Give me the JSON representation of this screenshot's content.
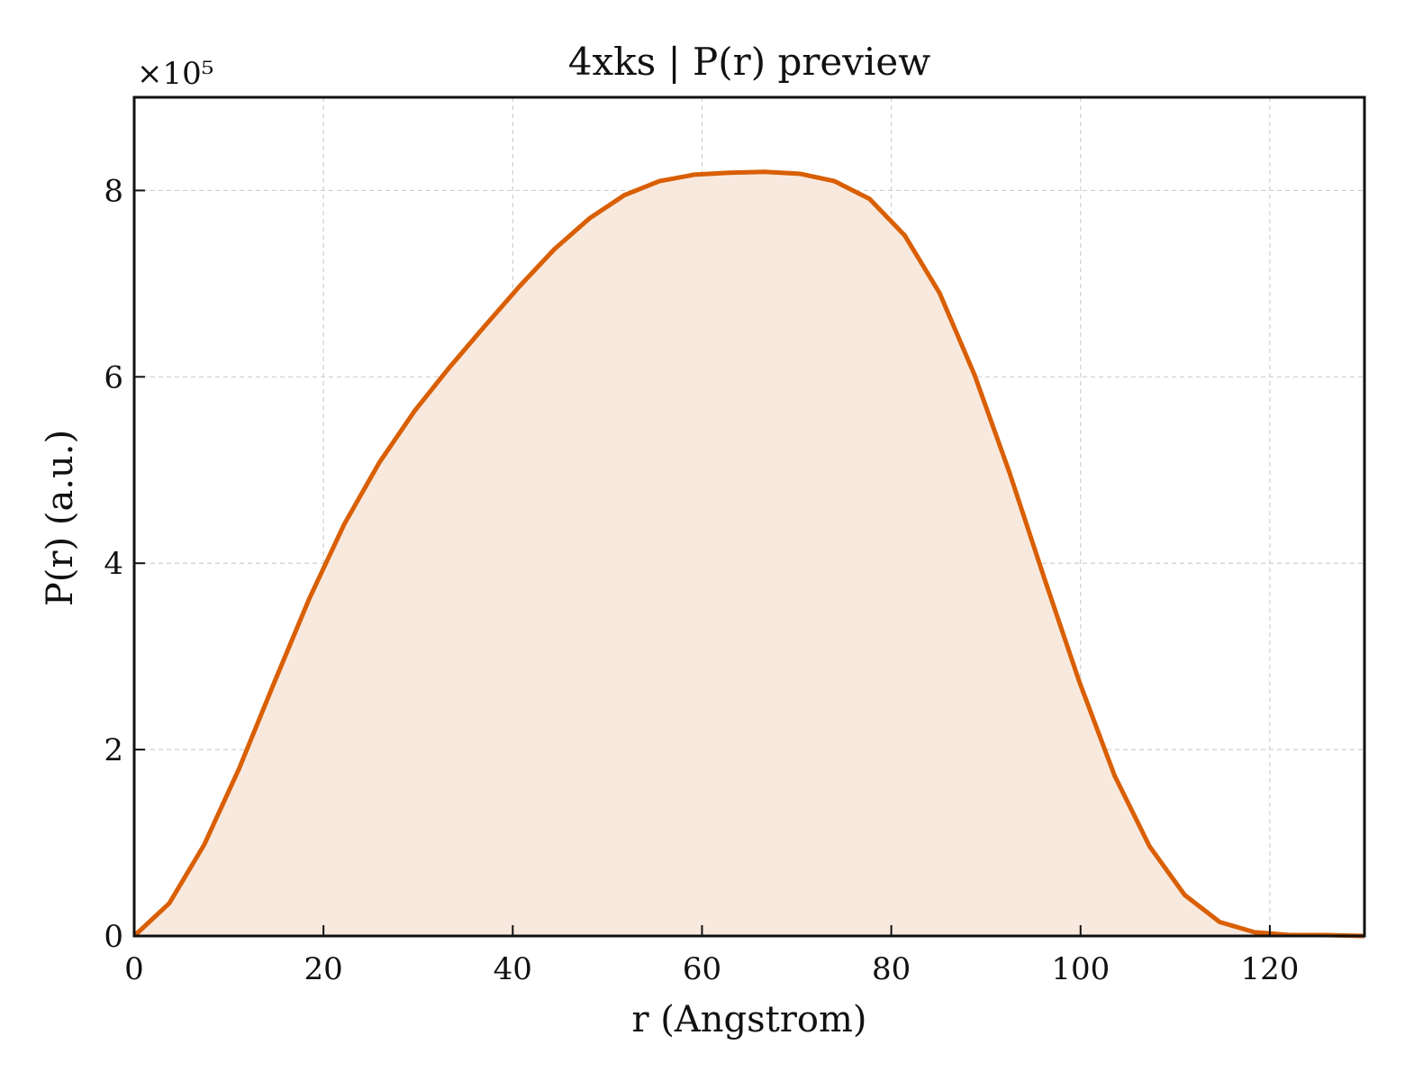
{
  "chart_data": {
    "type": "area",
    "title": "4xks | P(r) preview",
    "xlabel": "r (Angstrom)",
    "ylabel": "P(r) (a.u.)",
    "y_multiplier_label": "×10⁵",
    "xlim": [
      0,
      130
    ],
    "ylim": [
      0,
      9.0
    ],
    "xticks": [
      0,
      20,
      40,
      60,
      80,
      100,
      120
    ],
    "yticks": [
      0,
      2,
      4,
      6,
      8
    ],
    "grid": true,
    "colors": {
      "line": "#d95f02",
      "fill": "#f8e9df"
    },
    "series": [
      {
        "x": [
          0,
          3.7,
          7.4,
          11.1,
          14.8,
          18.5,
          22.2,
          25.9,
          29.6,
          33.3,
          37.0,
          40.7,
          44.4,
          48.1,
          51.8,
          55.5,
          59.2,
          62.9,
          66.6,
          70.3,
          74.0,
          77.7,
          81.4,
          85.1,
          88.8,
          92.5,
          96.2,
          99.9,
          103.6,
          107.3,
          111.0,
          114.7,
          118.4,
          122.1,
          125.8,
          130.0
        ],
        "y": [
          0.0,
          0.35,
          0.98,
          1.8,
          2.72,
          3.62,
          4.42,
          5.08,
          5.63,
          6.1,
          6.54,
          6.97,
          7.37,
          7.7,
          7.95,
          8.1,
          8.17,
          8.19,
          8.2,
          8.18,
          8.1,
          7.91,
          7.52,
          6.9,
          6.02,
          4.97,
          3.83,
          2.72,
          1.72,
          0.96,
          0.44,
          0.15,
          0.04,
          0.01,
          0.01,
          0.0
        ]
      }
    ]
  }
}
